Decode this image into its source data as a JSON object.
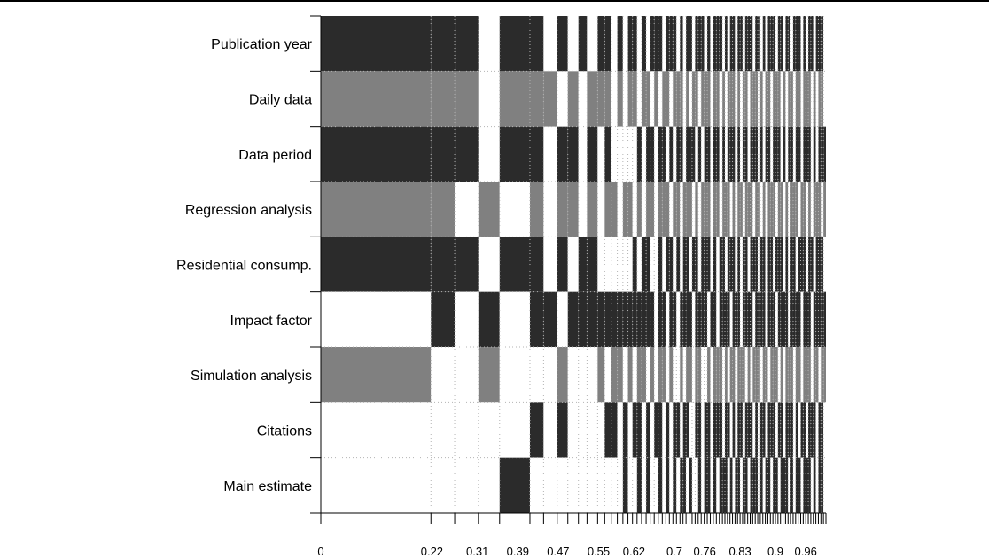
{
  "colors": {
    "included": "#2b2b2b",
    "included_alt": "#808080",
    "excluded": "#ffffff",
    "grid": "#b3b3b3",
    "axis": "#000000"
  },
  "chart_data": {
    "type": "heatmap",
    "title": "",
    "xlabel": "",
    "ylabel": "",
    "xlim": [
      0,
      1
    ],
    "x_tick_labels": [
      "0",
      "0.22",
      "0.31",
      "0.39",
      "0.47",
      "0.55",
      "0.62",
      "0.7",
      "0.76",
      "0.83",
      "0.9",
      "0.96"
    ],
    "x_ticks": [
      0,
      0.22,
      0.31,
      0.39,
      0.47,
      0.55,
      0.62,
      0.7,
      0.76,
      0.83,
      0.9,
      0.96
    ],
    "model_boundaries": [
      0,
      0.218,
      0.265,
      0.312,
      0.354,
      0.414,
      0.441,
      0.468,
      0.489,
      0.51,
      0.527,
      0.548,
      0.562,
      0.575,
      0.587,
      0.598,
      0.608,
      0.617,
      0.626,
      0.635,
      0.644,
      0.652,
      0.66,
      0.668,
      0.676,
      0.683,
      0.69,
      0.697,
      0.704,
      0.711,
      0.717,
      0.723,
      0.729,
      0.735,
      0.741,
      0.747,
      0.753,
      0.759,
      0.765,
      0.771,
      0.777,
      0.783,
      0.789,
      0.795,
      0.8,
      0.805,
      0.81,
      0.815,
      0.82,
      0.825,
      0.83,
      0.835,
      0.84,
      0.845,
      0.85,
      0.855,
      0.86,
      0.865,
      0.87,
      0.875,
      0.88,
      0.885,
      0.89,
      0.895,
      0.9,
      0.905,
      0.91,
      0.915,
      0.92,
      0.925,
      0.93,
      0.935,
      0.94,
      0.945,
      0.95,
      0.955,
      0.96,
      0.965,
      0.97,
      0.975,
      0.98,
      0.985,
      0.99,
      0.995,
      1.0
    ],
    "rows": [
      {
        "label": "Publication year",
        "shade": "included",
        "pattern": [
          1,
          1,
          1,
          0,
          1,
          1,
          0,
          1,
          0,
          1,
          0,
          1,
          1,
          0,
          1,
          0,
          1,
          1,
          0,
          1,
          0,
          1,
          1,
          1,
          0,
          1,
          1,
          1,
          0,
          1,
          0,
          1,
          1,
          0,
          1,
          1,
          1,
          0,
          1,
          0,
          1,
          1,
          1,
          0,
          1,
          0,
          1,
          1,
          0,
          1,
          1,
          0,
          1,
          1,
          1,
          0,
          1,
          1,
          0,
          1,
          0,
          1,
          1,
          1,
          0,
          1,
          1,
          0,
          1,
          1,
          0,
          1,
          1,
          1,
          0,
          1,
          0,
          1,
          1,
          0,
          1,
          1,
          1,
          0
        ]
      },
      {
        "label": "Daily data",
        "shade": "included_alt",
        "pattern": [
          1,
          1,
          1,
          0,
          1,
          1,
          1,
          0,
          1,
          0,
          1,
          1,
          1,
          0,
          1,
          0,
          1,
          1,
          0,
          1,
          1,
          0,
          1,
          0,
          1,
          1,
          0,
          1,
          1,
          1,
          0,
          1,
          0,
          1,
          1,
          0,
          1,
          1,
          1,
          0,
          1,
          1,
          0,
          1,
          0,
          1,
          1,
          1,
          0,
          1,
          0,
          1,
          1,
          0,
          1,
          1,
          1,
          0,
          1,
          0,
          1,
          1,
          0,
          1,
          1,
          1,
          0,
          1,
          0,
          1,
          1,
          0,
          1,
          1,
          0,
          1,
          1,
          1,
          0,
          1,
          0,
          1,
          1,
          0
        ]
      },
      {
        "label": "Data period",
        "shade": "included",
        "pattern": [
          1,
          1,
          1,
          0,
          1,
          1,
          0,
          1,
          1,
          0,
          1,
          0,
          1,
          0,
          0,
          0,
          0,
          0,
          1,
          0,
          1,
          1,
          0,
          1,
          1,
          0,
          1,
          0,
          1,
          1,
          0,
          1,
          1,
          1,
          0,
          1,
          0,
          1,
          1,
          0,
          1,
          1,
          0,
          1,
          0,
          1,
          1,
          1,
          0,
          1,
          0,
          1,
          1,
          0,
          1,
          1,
          1,
          0,
          1,
          0,
          1,
          1,
          0,
          1,
          1,
          1,
          0,
          1,
          0,
          1,
          1,
          0,
          1,
          1,
          0,
          1,
          1,
          1,
          0,
          1,
          0,
          1,
          1,
          1
        ]
      },
      {
        "label": "Regression analysis",
        "shade": "included_alt",
        "pattern": [
          1,
          1,
          0,
          1,
          0,
          1,
          0,
          1,
          1,
          0,
          1,
          0,
          1,
          1,
          0,
          1,
          1,
          0,
          1,
          0,
          1,
          1,
          0,
          1,
          1,
          1,
          0,
          1,
          1,
          0,
          1,
          1,
          1,
          0,
          1,
          0,
          1,
          1,
          1,
          0,
          1,
          1,
          0,
          1,
          1,
          1,
          0,
          1,
          0,
          1,
          1,
          0,
          1,
          1,
          1,
          0,
          1,
          1,
          0,
          1,
          0,
          1,
          1,
          1,
          0,
          1,
          1,
          0,
          1,
          0,
          1,
          1,
          1,
          0,
          1,
          1,
          0,
          1,
          0,
          1,
          1,
          1,
          0,
          1
        ]
      },
      {
        "label": "Residential consump.",
        "shade": "included",
        "pattern": [
          1,
          1,
          1,
          0,
          1,
          1,
          0,
          1,
          0,
          1,
          1,
          0,
          0,
          0,
          0,
          0,
          0,
          1,
          0,
          1,
          1,
          0,
          0,
          1,
          0,
          1,
          1,
          0,
          1,
          0,
          1,
          1,
          0,
          1,
          1,
          0,
          1,
          1,
          1,
          0,
          1,
          0,
          1,
          1,
          0,
          1,
          1,
          1,
          0,
          1,
          0,
          1,
          1,
          0,
          1,
          1,
          1,
          0,
          1,
          1,
          0,
          1,
          1,
          0,
          1,
          1,
          1,
          0,
          1,
          0,
          1,
          1,
          0,
          1,
          1,
          1,
          0,
          1,
          1,
          0,
          1,
          1,
          1,
          0
        ]
      },
      {
        "label": "Impact factor",
        "shade": "included",
        "pattern": [
          0,
          1,
          0,
          1,
          0,
          1,
          1,
          0,
          1,
          1,
          1,
          1,
          1,
          1,
          1,
          1,
          1,
          1,
          1,
          1,
          1,
          1,
          0,
          1,
          1,
          0,
          1,
          1,
          0,
          1,
          1,
          1,
          1,
          0,
          1,
          1,
          1,
          1,
          0,
          1,
          1,
          0,
          1,
          1,
          1,
          1,
          0,
          1,
          1,
          1,
          0,
          1,
          1,
          1,
          1,
          0,
          1,
          1,
          1,
          1,
          0,
          1,
          1,
          1,
          0,
          1,
          1,
          1,
          1,
          0,
          1,
          1,
          1,
          1,
          0,
          1,
          1,
          1,
          0,
          1,
          1,
          1,
          1,
          1
        ]
      },
      {
        "label": "Simulation analysis",
        "shade": "included_alt",
        "pattern": [
          1,
          0,
          0,
          1,
          0,
          0,
          0,
          1,
          0,
          0,
          0,
          1,
          0,
          1,
          1,
          0,
          1,
          0,
          1,
          1,
          0,
          1,
          0,
          1,
          1,
          0,
          1,
          0,
          0,
          1,
          0,
          1,
          1,
          0,
          1,
          1,
          0,
          0,
          1,
          0,
          1,
          1,
          1,
          0,
          1,
          0,
          1,
          1,
          0,
          1,
          1,
          1,
          0,
          1,
          0,
          1,
          1,
          1,
          0,
          1,
          1,
          0,
          1,
          1,
          1,
          0,
          1,
          0,
          1,
          1,
          1,
          0,
          1,
          1,
          0,
          1,
          1,
          1,
          0,
          1,
          1,
          0,
          1,
          1
        ]
      },
      {
        "label": "Citations",
        "shade": "included",
        "pattern": [
          0,
          0,
          0,
          0,
          0,
          1,
          0,
          1,
          0,
          0,
          0,
          0,
          1,
          1,
          0,
          1,
          0,
          1,
          1,
          0,
          1,
          0,
          1,
          1,
          0,
          1,
          0,
          1,
          1,
          0,
          1,
          1,
          0,
          0,
          1,
          1,
          0,
          1,
          1,
          0,
          1,
          1,
          1,
          0,
          1,
          1,
          0,
          1,
          0,
          1,
          1,
          0,
          1,
          1,
          1,
          0,
          1,
          0,
          1,
          1,
          0,
          1,
          1,
          1,
          0,
          1,
          1,
          0,
          1,
          1,
          1,
          0,
          1,
          0,
          1,
          1,
          0,
          1,
          1,
          1,
          0,
          1,
          1,
          0
        ]
      },
      {
        "label": "Main estimate",
        "shade": "included",
        "pattern": [
          0,
          0,
          0,
          0,
          1,
          0,
          0,
          0,
          0,
          0,
          0,
          0,
          0,
          0,
          0,
          1,
          0,
          0,
          1,
          0,
          1,
          0,
          0,
          1,
          0,
          1,
          0,
          1,
          0,
          1,
          1,
          0,
          1,
          0,
          0,
          1,
          0,
          1,
          1,
          0,
          1,
          0,
          1,
          1,
          1,
          0,
          1,
          0,
          1,
          1,
          0,
          1,
          1,
          0,
          1,
          1,
          1,
          0,
          1,
          0,
          1,
          1,
          0,
          1,
          1,
          0,
          1,
          1,
          1,
          0,
          1,
          0,
          1,
          1,
          0,
          1,
          1,
          1,
          0,
          1,
          0,
          1,
          1,
          0
        ]
      }
    ]
  }
}
